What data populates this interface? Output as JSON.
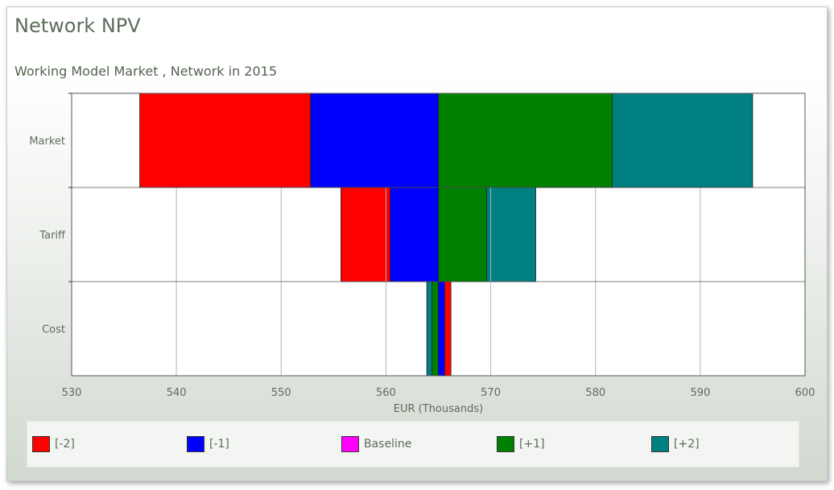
{
  "title": "Network NPV",
  "subtitle": "Working Model Market , Network in 2015",
  "chart_data": {
    "type": "bar",
    "orientation": "horizontal-tornado",
    "categories": [
      "Market",
      "Tariff",
      "Cost"
    ],
    "base_value": 565,
    "series": [
      {
        "name": "[-2]",
        "color": "#ff0000",
        "values": [
          536.5,
          555.7,
          566.2
        ]
      },
      {
        "name": "[-1]",
        "color": "#0000ff",
        "values": [
          552.8,
          560.4,
          565.6
        ]
      },
      {
        "name": "Baseline",
        "color": "#ff00ff",
        "values": [
          565,
          565,
          565
        ]
      },
      {
        "name": "[+1]",
        "color": "#008000",
        "values": [
          581.6,
          569.6,
          564.4
        ]
      },
      {
        "name": "[+2]",
        "color": "#008080",
        "values": [
          595.0,
          574.3,
          563.9
        ]
      }
    ],
    "xlim": [
      530,
      600
    ],
    "xticks": [
      "530",
      "540",
      "550",
      "560",
      "570",
      "580",
      "590",
      "600"
    ],
    "xlabel": "EUR (Thousands)",
    "ylabel": "",
    "grid": true,
    "legend_position": "bottom"
  }
}
